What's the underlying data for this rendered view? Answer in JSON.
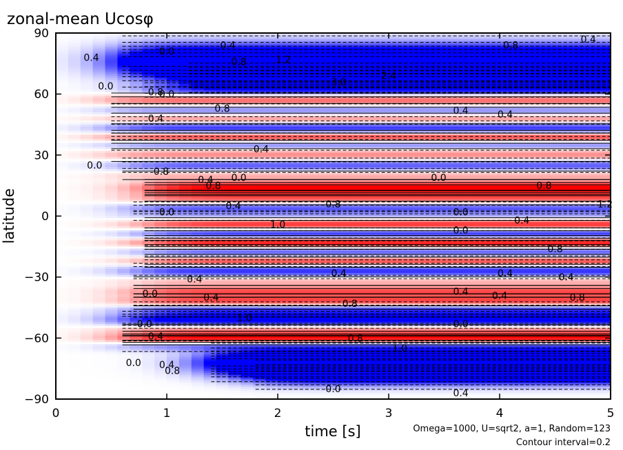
{
  "chart_data": {
    "type": "heatmap",
    "title": "zonal-mean Ucosφ",
    "xlabel": "time [s]",
    "ylabel": "latitude",
    "xlim": [
      0,
      5
    ],
    "ylim": [
      -90,
      90
    ],
    "x_ticks": [
      "0",
      "1",
      "2",
      "3",
      "4",
      "5"
    ],
    "y_ticks": [
      "90",
      "60",
      "30",
      "0",
      "−30",
      "−60",
      "−90"
    ],
    "annotations": [
      "Omega=1000, U=sqrt2, a=1, Random=123",
      "Contour interval=0.2"
    ],
    "contour_interval": 0.2,
    "colors": {
      "negative": "#0000ff",
      "positive": "#ff0000",
      "background": "#ffffff",
      "contour": "#000000"
    },
    "bands": [
      {
        "lat": 76,
        "width": 8,
        "value": -2.4,
        "onset": 0.6
      },
      {
        "lat": 68,
        "width": 5,
        "value": -1.6,
        "onset": 1.2
      },
      {
        "lat": 62,
        "width": 3,
        "value": -0.8,
        "onset": 0.8
      },
      {
        "lat": 57,
        "width": 3,
        "value": 0.8,
        "onset": 0.5
      },
      {
        "lat": 52,
        "width": 3,
        "value": -0.6,
        "onset": 0.5
      },
      {
        "lat": 48,
        "width": 2.5,
        "value": 0.6,
        "onset": 0.5
      },
      {
        "lat": 43,
        "width": 3,
        "value": -1.0,
        "onset": 0.5
      },
      {
        "lat": 39,
        "width": 2.5,
        "value": 1.0,
        "onset": 0.5
      },
      {
        "lat": 35,
        "width": 2.5,
        "value": -0.6,
        "onset": 0.5
      },
      {
        "lat": 30,
        "width": 3,
        "value": 0.6,
        "onset": 0.5
      },
      {
        "lat": 25,
        "width": 3,
        "value": -0.8,
        "onset": 0.6
      },
      {
        "lat": 20,
        "width": 2.5,
        "value": 0.4,
        "onset": 0.6
      },
      {
        "lat": 14,
        "width": 3,
        "value": 1.2,
        "onset": 0.8
      },
      {
        "lat": 9,
        "width": 3,
        "value": 0.8,
        "onset": 0.8
      },
      {
        "lat": 4,
        "width": 2.5,
        "value": -0.8,
        "onset": 0.7
      },
      {
        "lat": 0,
        "width": 2.5,
        "value": -0.4,
        "onset": 0.7
      },
      {
        "lat": -4,
        "width": 2.5,
        "value": 1.0,
        "onset": 0.8
      },
      {
        "lat": -9,
        "width": 2.5,
        "value": -1.0,
        "onset": 0.8
      },
      {
        "lat": -13,
        "width": 2.5,
        "value": 1.2,
        "onset": 0.8
      },
      {
        "lat": -18,
        "width": 3,
        "value": -0.8,
        "onset": 0.8
      },
      {
        "lat": -22,
        "width": 2.5,
        "value": 1.0,
        "onset": 0.8
      },
      {
        "lat": -27,
        "width": 3,
        "value": -1.0,
        "onset": 0.7
      },
      {
        "lat": -32,
        "width": 2.5,
        "value": 0.4,
        "onset": 0.7
      },
      {
        "lat": -37,
        "width": 2.5,
        "value": 0.8,
        "onset": 0.7
      },
      {
        "lat": -42,
        "width": 3,
        "value": 1.0,
        "onset": 0.7
      },
      {
        "lat": -46,
        "width": 3,
        "value": -1.0,
        "onset": 0.7
      },
      {
        "lat": -51,
        "width": 3,
        "value": -1.4,
        "onset": 0.6
      },
      {
        "lat": -56,
        "width": 2.5,
        "value": 0.6,
        "onset": 0.6
      },
      {
        "lat": -60,
        "width": 2.5,
        "value": 1.2,
        "onset": 0.6
      },
      {
        "lat": -64,
        "width": 2.5,
        "value": -0.6,
        "onset": 0.6
      },
      {
        "lat": -72,
        "width": 6,
        "value": -2.4,
        "onset": 1.4
      },
      {
        "lat": -78,
        "width": 5,
        "value": -1.6,
        "onset": 1.8
      }
    ],
    "contour_labels": [
      {
        "t": 0.32,
        "lat": 78,
        "text": "0.4"
      },
      {
        "t": 1.0,
        "lat": 81,
        "text": "0.0"
      },
      {
        "t": 1.55,
        "lat": 84,
        "text": "0.4"
      },
      {
        "t": 1.65,
        "lat": 76,
        "text": "0.8"
      },
      {
        "t": 2.05,
        "lat": 77,
        "text": "1.2"
      },
      {
        "t": 1.0,
        "lat": 60,
        "text": "0.0"
      },
      {
        "t": 2.55,
        "lat": 66,
        "text": "3.0"
      },
      {
        "t": 3.0,
        "lat": 69,
        "text": "2.4"
      },
      {
        "t": 4.1,
        "lat": 84,
        "text": "0.8"
      },
      {
        "t": 4.8,
        "lat": 87,
        "text": "0.4"
      },
      {
        "t": 0.45,
        "lat": 64,
        "text": "0.0"
      },
      {
        "t": 0.9,
        "lat": 61,
        "text": "0.8"
      },
      {
        "t": 1.5,
        "lat": 53,
        "text": "0.8"
      },
      {
        "t": 0.9,
        "lat": 48,
        "text": "0.4"
      },
      {
        "t": 3.65,
        "lat": 52,
        "text": "0.4"
      },
      {
        "t": 4.05,
        "lat": 50,
        "text": "0.4"
      },
      {
        "t": 1.85,
        "lat": 33,
        "text": "0.4"
      },
      {
        "t": 0.35,
        "lat": 25,
        "text": "0.0"
      },
      {
        "t": 0.95,
        "lat": 22,
        "text": "0.8"
      },
      {
        "t": 1.35,
        "lat": 18,
        "text": "0.4"
      },
      {
        "t": 1.65,
        "lat": 19,
        "text": "0.0"
      },
      {
        "t": 1.42,
        "lat": 15,
        "text": "0.8"
      },
      {
        "t": 3.45,
        "lat": 19,
        "text": "0.0"
      },
      {
        "t": 4.4,
        "lat": 15,
        "text": "0.8"
      },
      {
        "t": 4.95,
        "lat": 6,
        "text": "1.2"
      },
      {
        "t": 2.5,
        "lat": 6,
        "text": "0.8"
      },
      {
        "t": 1.6,
        "lat": 5,
        "text": "0.4"
      },
      {
        "t": 1.0,
        "lat": 2,
        "text": "0.0"
      },
      {
        "t": 3.65,
        "lat": 2,
        "text": "0.0"
      },
      {
        "t": 4.2,
        "lat": -2,
        "text": "0.4"
      },
      {
        "t": 3.65,
        "lat": -7,
        "text": "0.0"
      },
      {
        "t": 2.0,
        "lat": -4,
        "text": "1.0"
      },
      {
        "t": 4.5,
        "lat": -16,
        "text": "0.8"
      },
      {
        "t": 1.25,
        "lat": -31,
        "text": "0.4"
      },
      {
        "t": 2.55,
        "lat": -28,
        "text": "0.4"
      },
      {
        "t": 4.05,
        "lat": -28,
        "text": "0.4"
      },
      {
        "t": 4.6,
        "lat": -30,
        "text": "0.4"
      },
      {
        "t": 0.85,
        "lat": -38,
        "text": "0.0"
      },
      {
        "t": 1.4,
        "lat": -40,
        "text": "0.4"
      },
      {
        "t": 2.65,
        "lat": -43,
        "text": "0.8"
      },
      {
        "t": 3.65,
        "lat": -37,
        "text": "0.4"
      },
      {
        "t": 4.0,
        "lat": -39,
        "text": "0.4"
      },
      {
        "t": 4.7,
        "lat": -40,
        "text": "0.8"
      },
      {
        "t": 0.8,
        "lat": -53,
        "text": "0.0"
      },
      {
        "t": 1.7,
        "lat": -50,
        "text": "1.0"
      },
      {
        "t": 3.65,
        "lat": -53,
        "text": "0.0"
      },
      {
        "t": 0.9,
        "lat": -59,
        "text": "0.4"
      },
      {
        "t": 2.7,
        "lat": -60,
        "text": "0.8"
      },
      {
        "t": 3.1,
        "lat": -65,
        "text": "1.0"
      },
      {
        "t": 0.7,
        "lat": -72,
        "text": "0.0"
      },
      {
        "t": 1.0,
        "lat": -73,
        "text": "0.4"
      },
      {
        "t": 1.05,
        "lat": -76,
        "text": "0.8"
      },
      {
        "t": 2.5,
        "lat": -85,
        "text": "0.0"
      },
      {
        "t": 3.65,
        "lat": -87,
        "text": "0.4"
      }
    ]
  }
}
